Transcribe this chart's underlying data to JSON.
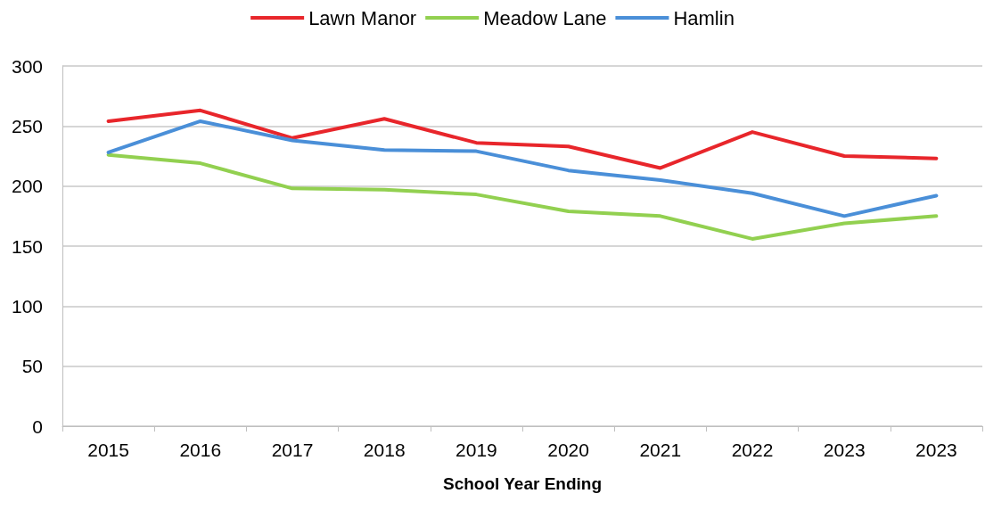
{
  "chart_data": {
    "type": "line",
    "xlabel": "School Year Ending",
    "categories": [
      "2015",
      "2016",
      "2017",
      "2018",
      "2019",
      "2020",
      "2021",
      "2022",
      "2023",
      "2023"
    ],
    "series": [
      {
        "name": "Lawn Manor",
        "color": "#e8262b",
        "values": [
          254,
          263,
          240,
          256,
          236,
          233,
          215,
          245,
          225,
          223
        ]
      },
      {
        "name": "Meadow Lane",
        "color": "#92d050",
        "values": [
          226,
          219,
          198,
          197,
          193,
          179,
          175,
          156,
          169,
          175
        ]
      },
      {
        "name": "Hamlin",
        "color": "#4a8fd8",
        "values": [
          228,
          254,
          238,
          230,
          229,
          213,
          205,
          194,
          175,
          192
        ]
      }
    ],
    "ylim": [
      0,
      300
    ],
    "yticks": [
      0,
      50,
      100,
      150,
      200,
      250,
      300
    ],
    "grid": "y",
    "legend": "top",
    "marker": "none",
    "line_style": "solid"
  }
}
